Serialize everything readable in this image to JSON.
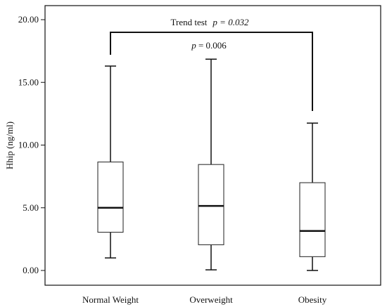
{
  "chart_data": {
    "type": "boxplot",
    "ylabel": "Hhip (ng/ml)",
    "ylim": [
      0,
      20
    ],
    "yticks": [
      "0.00",
      "5.00",
      "10.00",
      "15.00",
      "20.00"
    ],
    "grid": false,
    "categories": [
      "Normal Weight",
      "Overweight",
      "Obesity"
    ],
    "boxes": [
      {
        "min": 1.0,
        "q1": 3.05,
        "median": 5.0,
        "q3": 8.65,
        "max": 16.3
      },
      {
        "min": 0.05,
        "q1": 2.05,
        "median": 5.15,
        "q3": 8.45,
        "max": 16.85
      },
      {
        "min": 0.0,
        "q1": 1.1,
        "median": 3.15,
        "q3": 7.0,
        "max": 11.75
      }
    ],
    "annotations": {
      "trend_prefix": "Trend test",
      "trend_p": "p = 0.032",
      "pair_p_symbol": "p",
      "pair_p_rest": " = 0.006"
    }
  }
}
